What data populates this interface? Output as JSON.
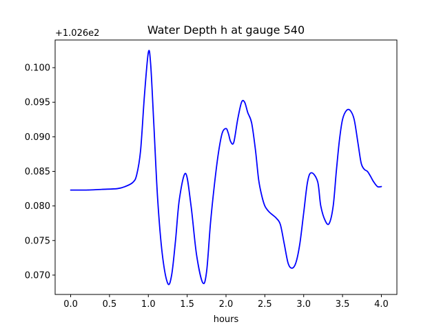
{
  "chart_data": {
    "type": "line",
    "title": "Water Depth h at gauge 540",
    "xlabel": "hours",
    "ylabel": "",
    "y_offset_label": "+1.026e2",
    "xlim": [
      -0.2,
      4.2
    ],
    "ylim": [
      0.0672,
      0.104
    ],
    "xticks": [
      0.0,
      0.5,
      1.0,
      1.5,
      2.0,
      2.5,
      3.0,
      3.5,
      4.0
    ],
    "xtick_labels": [
      "0.0",
      "0.5",
      "1.0",
      "1.5",
      "2.0",
      "2.5",
      "3.0",
      "3.5",
      "4.0"
    ],
    "yticks": [
      0.07,
      0.075,
      0.08,
      0.085,
      0.09,
      0.095,
      0.1
    ],
    "ytick_labels": [
      "0.070",
      "0.075",
      "0.080",
      "0.085",
      "0.090",
      "0.095",
      "0.100"
    ],
    "grid": false,
    "series": [
      {
        "color": "#0000ff",
        "x": [
          0.0,
          0.2,
          0.4,
          0.6,
          0.7,
          0.8,
          0.85,
          0.9,
          0.95,
          1.0,
          1.03,
          1.07,
          1.12,
          1.18,
          1.25,
          1.3,
          1.35,
          1.4,
          1.48,
          1.55,
          1.62,
          1.7,
          1.75,
          1.8,
          1.85,
          1.9,
          1.95,
          2.0,
          2.03,
          2.06,
          2.1,
          2.15,
          2.2,
          2.24,
          2.28,
          2.33,
          2.38,
          2.42,
          2.46,
          2.5,
          2.55,
          2.6,
          2.65,
          2.7,
          2.75,
          2.8,
          2.85,
          2.9,
          2.95,
          3.0,
          3.05,
          3.1,
          3.18,
          3.22,
          3.28,
          3.33,
          3.38,
          3.42,
          3.46,
          3.5,
          3.55,
          3.6,
          3.65,
          3.7,
          3.74,
          3.78,
          3.82,
          3.86,
          3.9,
          3.95,
          4.0
        ],
        "y": [
          0.0823,
          0.0823,
          0.0824,
          0.0825,
          0.0828,
          0.0834,
          0.0845,
          0.088,
          0.096,
          0.1022,
          0.1005,
          0.092,
          0.081,
          0.073,
          0.0688,
          0.07,
          0.075,
          0.081,
          0.0847,
          0.08,
          0.073,
          0.0689,
          0.0705,
          0.0775,
          0.083,
          0.0875,
          0.0905,
          0.0912,
          0.0905,
          0.0893,
          0.0892,
          0.0925,
          0.095,
          0.095,
          0.0935,
          0.092,
          0.088,
          0.0838,
          0.0815,
          0.08,
          0.0792,
          0.0787,
          0.0782,
          0.0773,
          0.0745,
          0.0717,
          0.071,
          0.0718,
          0.0745,
          0.079,
          0.0835,
          0.0848,
          0.0835,
          0.08,
          0.0778,
          0.0775,
          0.08,
          0.085,
          0.0895,
          0.0925,
          0.0938,
          0.0938,
          0.0925,
          0.089,
          0.0862,
          0.0853,
          0.085,
          0.0843,
          0.0835,
          0.0828,
          0.0828
        ]
      }
    ]
  }
}
